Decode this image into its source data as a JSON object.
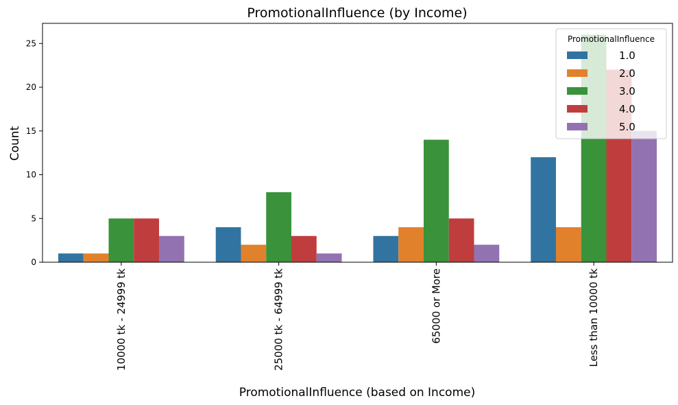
{
  "chart_data": {
    "type": "bar",
    "title": "PromotionalInfluence (by Income)",
    "xlabel": "PromotionalInfluence (based on Income)",
    "ylabel": "Count",
    "categories": [
      "10000 tk - 24999 tk",
      "25000 tk - 64999 tk",
      "65000 or More",
      "Less than 10000 tk"
    ],
    "ylim": [
      0,
      27.3
    ],
    "yticks": [
      0,
      5,
      10,
      15,
      20,
      25
    ],
    "legend": {
      "title": "PromotionalInfluence",
      "placement": "top-right"
    },
    "series": [
      {
        "name": "1.0",
        "color": "#3274a1",
        "values": [
          1,
          4,
          3,
          12
        ]
      },
      {
        "name": "2.0",
        "color": "#e1812c",
        "values": [
          1,
          2,
          4,
          4
        ]
      },
      {
        "name": "3.0",
        "color": "#3a923a",
        "values": [
          5,
          8,
          14,
          26
        ]
      },
      {
        "name": "4.0",
        "color": "#c03d3e",
        "values": [
          5,
          3,
          5,
          22
        ]
      },
      {
        "name": "5.0",
        "color": "#9372b2",
        "values": [
          3,
          1,
          2,
          15
        ]
      }
    ]
  }
}
